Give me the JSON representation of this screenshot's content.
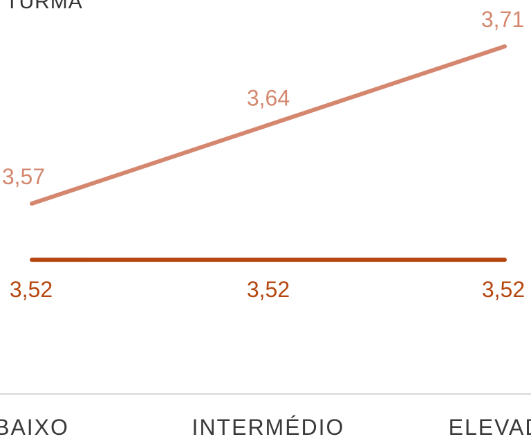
{
  "chart_data": {
    "type": "line",
    "title": "A TURMA",
    "categories": [
      "BAIXO",
      "INTERMÉDIO",
      "ELEVADO"
    ],
    "series": [
      {
        "values": [
          3.57,
          3.64,
          3.71
        ],
        "labels": [
          "3,57",
          "3,64",
          "3,71"
        ],
        "color": "#D4876E"
      },
      {
        "values": [
          3.52,
          3.52,
          3.52
        ],
        "labels": [
          "3,52",
          "3,52",
          "3,52"
        ],
        "color": "#B5460F"
      }
    ],
    "ylim": [
      3.4,
      3.75
    ],
    "grid": false,
    "baseline_color": "#d9d9d9"
  }
}
